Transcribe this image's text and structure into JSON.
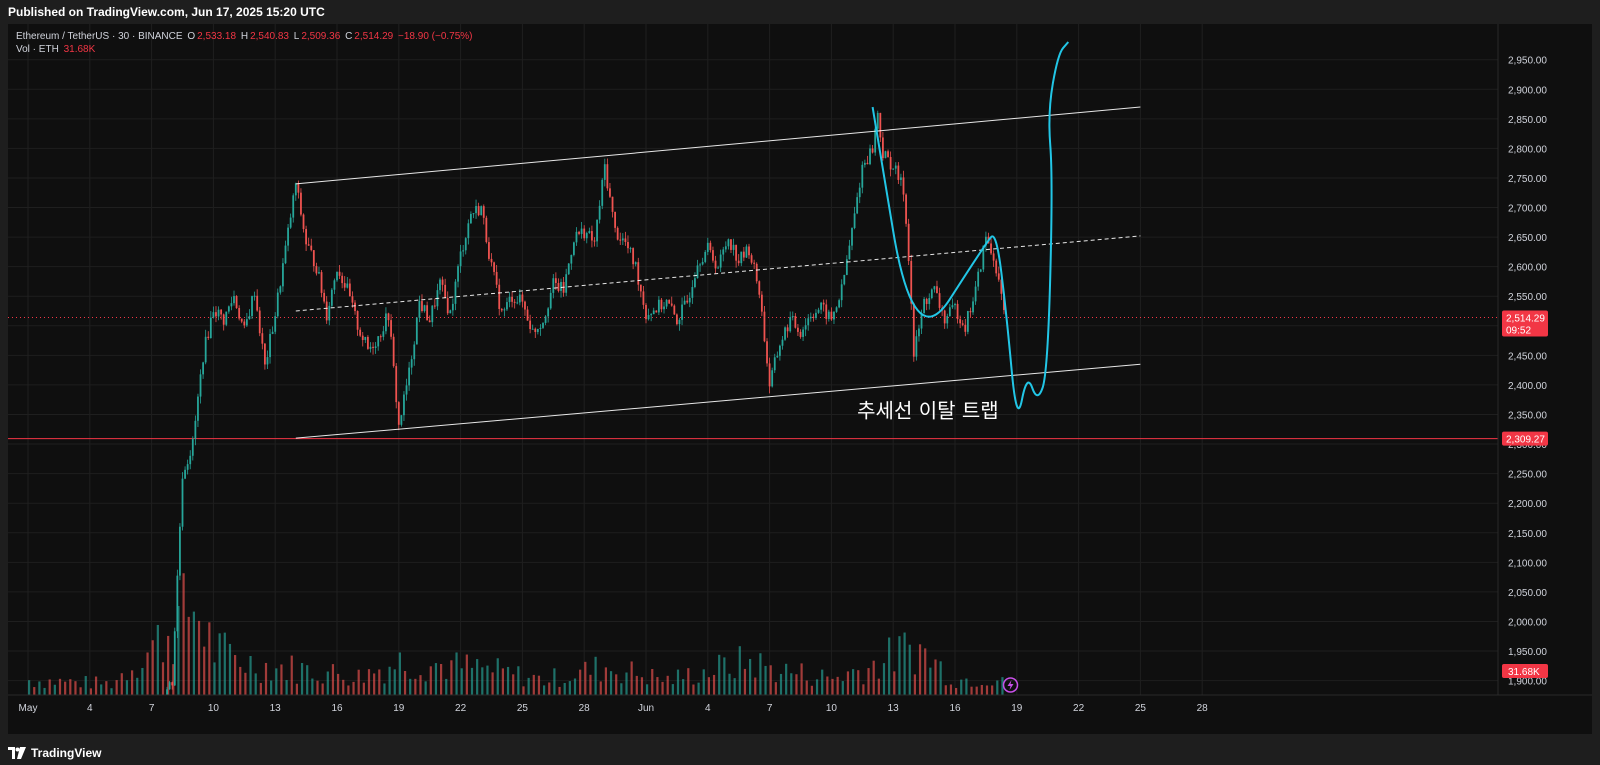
{
  "header": {
    "published_text": "Published on TradingView.com, Jun 17, 2025 15:20 UTC"
  },
  "footer": {
    "brand": "TradingView",
    "logo_icon": "tradingview-logo-icon"
  },
  "legend": {
    "symbol": "Ethereum / TetherUS · 30 · BINANCE",
    "o_label": "O",
    "o_value": "2,533.18",
    "h_label": "H",
    "h_value": "2,540.83",
    "l_label": "L",
    "l_value": "2,509.36",
    "c_label": "C",
    "c_value": "2,514.29",
    "change": "−18.90 (−0.75%)",
    "vol_label": "Vol · ETH",
    "vol_value": "31.68K"
  },
  "colors": {
    "up": "#26a69a",
    "down": "#ef5350",
    "price_line": "#f23645",
    "channel": "#ffffff",
    "projection": "#22c6e6",
    "background": "#0f0f0f"
  },
  "chart_data": {
    "type": "candlestick",
    "title": "",
    "xlabel": "",
    "ylabel": "",
    "ylim": [
      1835,
      2980
    ],
    "x_ticks": [
      "May",
      "4",
      "7",
      "10",
      "13",
      "16",
      "19",
      "22",
      "25",
      "28",
      "Jun",
      "4",
      "7",
      "10",
      "13",
      "16",
      "19",
      "22",
      "25",
      "28"
    ],
    "y_ticks": [
      1900,
      1950,
      2000,
      2050,
      2100,
      2150,
      2200,
      2250,
      2300,
      2350,
      2400,
      2450,
      2500,
      2550,
      2600,
      2650,
      2700,
      2750,
      2800,
      2850,
      2900,
      2950
    ],
    "y_tick_labels": [
      "1,900.00",
      "1,950.00",
      "2,000.00",
      "2,050.00",
      "2,100.00",
      "2,150.00",
      "2,200.00",
      "2,250.00",
      "2,300.00",
      "2,350.00",
      "2,400.00",
      "2,450.00",
      "2,500.00",
      "2,550.00",
      "2,600.00",
      "2,650.00",
      "2,700.00",
      "2,750.00",
      "2,800.00",
      "2,850.00",
      "2,900.00",
      "2,950.00"
    ],
    "price_path": [
      [
        "May 1",
        1835
      ],
      [
        "May 2",
        1840
      ],
      [
        "May 3",
        1842
      ],
      [
        "May 4",
        1840
      ],
      [
        "May 5",
        1838
      ],
      [
        "May 6",
        1840
      ],
      [
        "May 7",
        1842
      ],
      [
        "May 8",
        1900
      ],
      [
        "May 8 12:00",
        2250
      ],
      [
        "May 9",
        2300
      ],
      [
        "May 9 12:00",
        2450
      ],
      [
        "May 10",
        2530
      ],
      [
        "May 10 12:00",
        2510
      ],
      [
        "May 11",
        2550
      ],
      [
        "May 11 12:00",
        2490
      ],
      [
        "May 12",
        2560
      ],
      [
        "May 12 12:00",
        2430
      ],
      [
        "May 13",
        2520
      ],
      [
        "May 14",
        2740
      ],
      [
        "May 14 12:00",
        2640
      ],
      [
        "May 15",
        2600
      ],
      [
        "May 15 12:00",
        2520
      ],
      [
        "May 16",
        2600
      ],
      [
        "May 16 12:00",
        2560
      ],
      [
        "May 17",
        2500
      ],
      [
        "May 17 12:00",
        2460
      ],
      [
        "May 18",
        2480
      ],
      [
        "May 18 12:00",
        2520
      ],
      [
        "May 19",
        2330
      ],
      [
        "May 19 12:00",
        2420
      ],
      [
        "May 20",
        2540
      ],
      [
        "May 20 12:00",
        2510
      ],
      [
        "May 21",
        2570
      ],
      [
        "May 21 12:00",
        2520
      ],
      [
        "May 22",
        2620
      ],
      [
        "May 22 12:00",
        2690
      ],
      [
        "May 23",
        2700
      ],
      [
        "May 23 12:00",
        2600
      ],
      [
        "May 24",
        2520
      ],
      [
        "May 24 12:00",
        2550
      ],
      [
        "May 25",
        2540
      ],
      [
        "May 25 12:00",
        2490
      ],
      [
        "May 26",
        2510
      ],
      [
        "May 26 12:00",
        2570
      ],
      [
        "May 27",
        2560
      ],
      [
        "May 27 12:00",
        2650
      ],
      [
        "May 28",
        2660
      ],
      [
        "May 28 12:00",
        2640
      ],
      [
        "May 29",
        2770
      ],
      [
        "May 29 12:00",
        2660
      ],
      [
        "May 30",
        2640
      ],
      [
        "May 30 12:00",
        2600
      ],
      [
        "May 31",
        2520
      ],
      [
        "May 31 12:00",
        2530
      ],
      [
        "Jun 1",
        2540
      ],
      [
        "Jun 1 12:00",
        2510
      ],
      [
        "Jun 2",
        2540
      ],
      [
        "Jun 2 12:00",
        2610
      ],
      [
        "Jun 3",
        2630
      ],
      [
        "Jun 3 12:00",
        2600
      ],
      [
        "Jun 4",
        2650
      ],
      [
        "Jun 4 12:00",
        2610
      ],
      [
        "Jun 5",
        2630
      ],
      [
        "Jun 5 12:00",
        2560
      ],
      [
        "Jun 6",
        2400
      ],
      [
        "Jun 6 12:00",
        2470
      ],
      [
        "Jun 7",
        2510
      ],
      [
        "Jun 7 12:00",
        2490
      ],
      [
        "Jun 8",
        2520
      ],
      [
        "Jun 8 12:00",
        2530
      ],
      [
        "Jun 9",
        2510
      ],
      [
        "Jun 9 12:00",
        2560
      ],
      [
        "Jun 10",
        2660
      ],
      [
        "Jun 10 12:00",
        2770
      ],
      [
        "Jun 11",
        2800
      ],
      [
        "Jun 11 06:00",
        2860
      ],
      [
        "Jun 11 12:00",
        2790
      ],
      [
        "Jun 12",
        2770
      ],
      [
        "Jun 12 12:00",
        2730
      ],
      [
        "Jun 12 18:00",
        2620
      ],
      [
        "Jun 13",
        2450
      ],
      [
        "Jun 13 12:00",
        2540
      ],
      [
        "Jun 14",
        2560
      ],
      [
        "Jun 14 12:00",
        2510
      ],
      [
        "Jun 15",
        2530
      ],
      [
        "Jun 15 12:00",
        2500
      ],
      [
        "Jun 16",
        2560
      ],
      [
        "Jun 16 12:00",
        2650
      ],
      [
        "Jun 17",
        2600
      ],
      [
        "Jun 17 09:52",
        2514
      ]
    ],
    "volume_path": [
      [
        "May 1",
        40
      ],
      [
        "May 3",
        35
      ],
      [
        "May 5",
        30
      ],
      [
        "May 8",
        180
      ],
      [
        "May 9",
        240
      ],
      [
        "May 10",
        120
      ],
      [
        "May 12",
        80
      ],
      [
        "May 14",
        70
      ],
      [
        "May 17",
        50
      ],
      [
        "May 19",
        90
      ],
      [
        "May 23",
        70
      ],
      [
        "May 26",
        40
      ],
      [
        "May 29",
        75
      ],
      [
        "Jun 1",
        40
      ],
      [
        "Jun 5",
        90
      ],
      [
        "Jun 6",
        70
      ],
      [
        "Jun 9",
        45
      ],
      [
        "Jun 11",
        80
      ],
      [
        "Jun 13",
        130
      ],
      [
        "Jun 15",
        40
      ],
      [
        "Jun 17",
        50
      ]
    ],
    "volume_unit": "K ETH",
    "overlays": {
      "channel_upper": [
        [
          "May 14",
          2740
        ],
        [
          "Jun 24",
          2870
        ]
      ],
      "channel_lower": [
        [
          "May 14",
          2310
        ],
        [
          "Jun 24",
          2435
        ]
      ],
      "channel_mid": [
        [
          "May 14",
          2525
        ],
        [
          "Jun 24",
          2652
        ]
      ],
      "projection_path": [
        [
          "Jun 11",
          2870
        ],
        [
          "Jun 13",
          2450
        ],
        [
          "Jun 16 12:00",
          2640
        ],
        [
          "Jun 17",
          2660
        ],
        [
          "Jun 17 12:00",
          2520
        ],
        [
          "Jun 18",
          2330
        ],
        [
          "Jun 18 12:00",
          2420
        ],
        [
          "Jun 19",
          2370
        ],
        [
          "Jun 19 12:00",
          2420
        ],
        [
          "Jun 19 18:00",
          2750
        ],
        [
          "Jun 19 12:00",
          2860
        ],
        [
          "Jun 20",
          2960
        ],
        [
          "Jun 20 12:00",
          2980
        ]
      ],
      "support_level": 2309.27
    },
    "annotation": "추세선 이탈 트랩",
    "last_price_label": "2,514.29",
    "countdown": "09:52",
    "support_label": "2,309.27",
    "volume_label": "31.68K",
    "grid": true
  }
}
